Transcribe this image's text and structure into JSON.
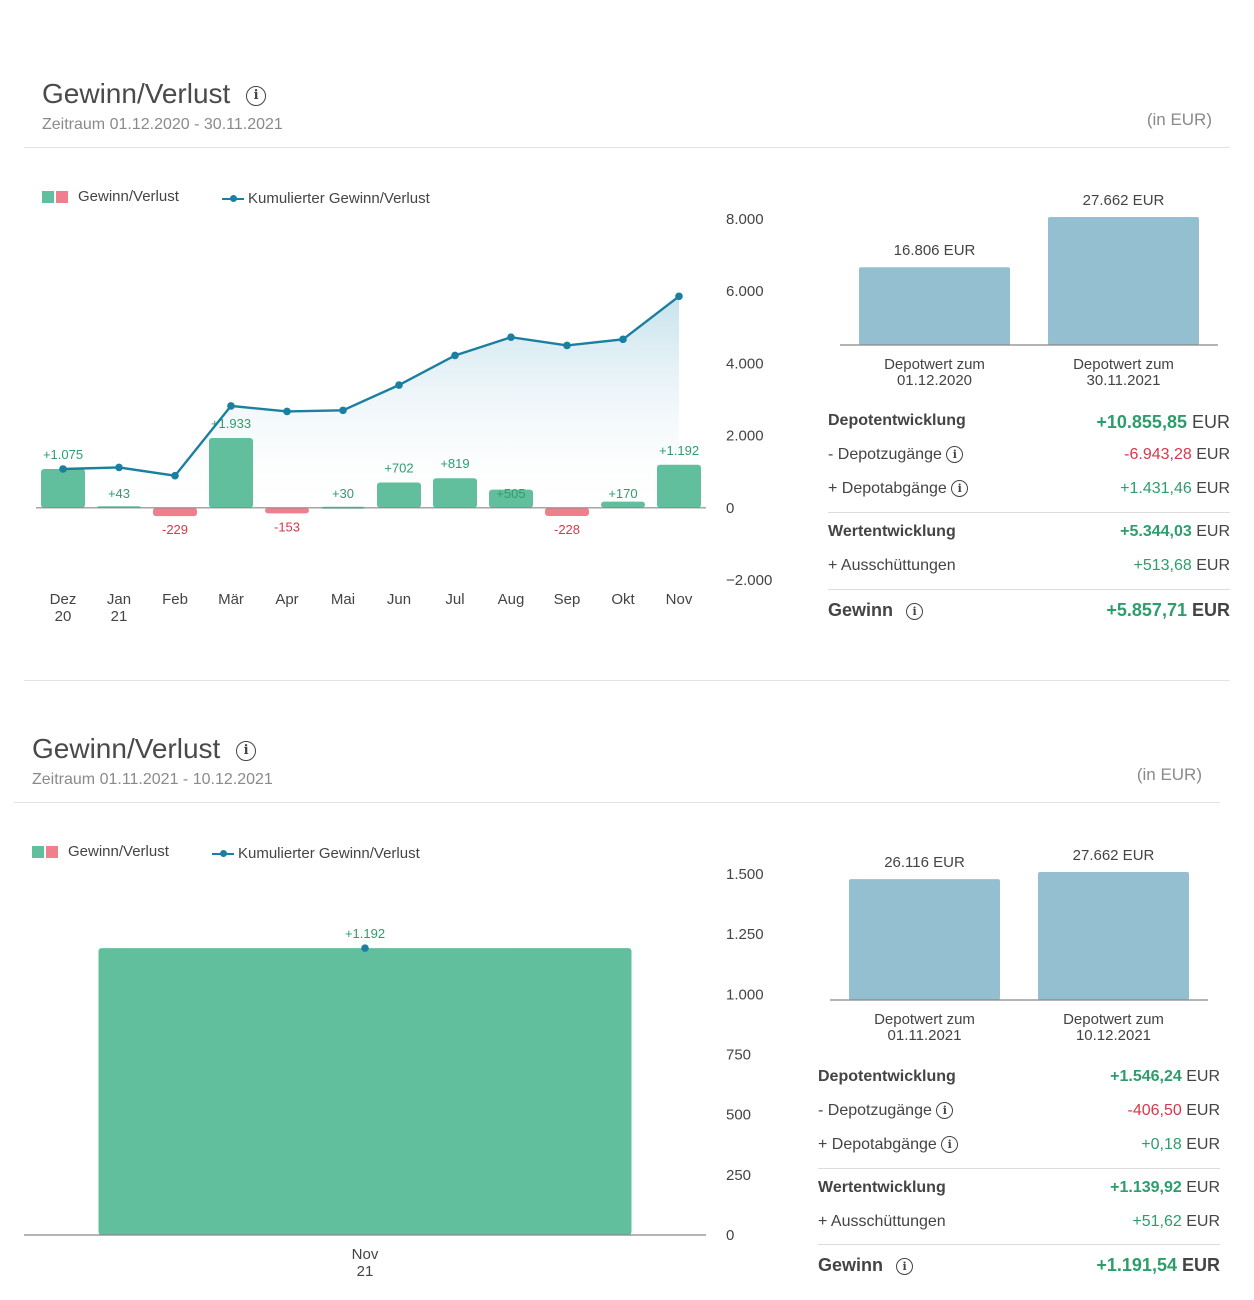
{
  "colors": {
    "positive_bar": "#62bf9d",
    "negative_bar": "#ef7f8c",
    "line": "#1a7fa0",
    "depot_bar": "#94bfd1",
    "positive_text": "#2d9e6b",
    "negative_text": "#d9374b"
  },
  "panel1": {
    "title": "Gewinn/Verlust",
    "period_label": "Zeitraum",
    "period_from": "01.12.2020",
    "period_dash": "-",
    "period_to": "30.11.2021",
    "unit": "(in EUR)",
    "legend_bars": "Gewinn/Verlust",
    "legend_line": "Kumulierter Gewinn/Verlust",
    "summary": {
      "depotentwicklung_label": "Depotentwicklung",
      "depotentwicklung_value": "+10.855,85",
      "currency": "EUR",
      "zugaenge_label": "- Depotzugänge",
      "zugaenge_value": "-6.943,28",
      "abgaenge_label": "+ Depotabgänge",
      "abgaenge_value": "+1.431,46",
      "wertentwicklung_label": "Wertentwicklung",
      "wertentwicklung_value": "+5.344,03",
      "ausschuettungen_label": "+ Ausschüttungen",
      "ausschuettungen_value": "+513,68",
      "gewinn_label": "Gewinn",
      "gewinn_value": "+5.857,71"
    }
  },
  "panel2": {
    "title": "Gewinn/Verlust",
    "period_label": "Zeitraum",
    "period_from": "01.11.2021",
    "period_dash": "-",
    "period_to": "10.12.2021",
    "unit": "(in EUR)",
    "legend_bars": "Gewinn/Verlust",
    "legend_line": "Kumulierter Gewinn/Verlust",
    "summary": {
      "depotentwicklung_label": "Depotentwicklung",
      "depotentwicklung_value": "+1.546,24",
      "currency": "EUR",
      "zugaenge_label": "- Depotzugänge",
      "zugaenge_value": "-406,50",
      "abgaenge_label": "+ Depotabgänge",
      "abgaenge_value": "+0,18",
      "wertentwicklung_label": "Wertentwicklung",
      "wertentwicklung_value": "+1.139,92",
      "ausschuettungen_label": "+ Ausschüttungen",
      "ausschuettungen_value": "+51,62",
      "gewinn_label": "Gewinn",
      "gewinn_value": "+1.191,54"
    }
  },
  "chart_data": [
    {
      "type": "bar",
      "id": "pl1",
      "categories": [
        "Dez 20",
        "Jan 21",
        "Feb",
        "Mär",
        "Apr",
        "Mai",
        "Jun",
        "Jul",
        "Aug",
        "Sep",
        "Okt",
        "Nov"
      ],
      "category_lines": [
        [
          "Dez",
          "20"
        ],
        [
          "Jan",
          "21"
        ],
        [
          "Feb"
        ],
        [
          "Mär"
        ],
        [
          "Apr"
        ],
        [
          "Mai"
        ],
        [
          "Jun"
        ],
        [
          "Jul"
        ],
        [
          "Aug"
        ],
        [
          "Sep"
        ],
        [
          "Okt"
        ],
        [
          "Nov"
        ]
      ],
      "series": [
        {
          "name": "Gewinn/Verlust",
          "values": [
            1075,
            43,
            -229,
            1933,
            -153,
            30,
            702,
            819,
            505,
            -228,
            170,
            1192
          ],
          "labels": [
            "+1.075",
            "+43",
            "-229",
            "+1.933",
            "-153",
            "+30",
            "+702",
            "+819",
            "+505",
            "-228",
            "+170",
            "+1.192"
          ]
        },
        {
          "name": "Kumulierter Gewinn/Verlust",
          "type": "line",
          "values": [
            1075,
            1118,
            889,
            2822,
            2669,
            2699,
            3401,
            4220,
            4725,
            4497,
            4667,
            5859
          ]
        }
      ],
      "yticks": [
        -2000,
        0,
        2000,
        4000,
        6000,
        8000
      ],
      "ytick_labels": [
        "−2.000",
        "0",
        "2.000",
        "4.000",
        "6.000",
        "8.000"
      ],
      "ylim": [
        -2000,
        8000
      ]
    },
    {
      "type": "bar",
      "id": "dep1",
      "categories": [
        "Depotwert zum 01.12.2020",
        "Depotwert zum 30.11.2021"
      ],
      "category_lines": [
        [
          "Depotwert zum",
          "01.12.2020"
        ],
        [
          "Depotwert zum",
          "30.11.2021"
        ]
      ],
      "values": [
        16806,
        27662
      ],
      "labels": [
        "16.806 EUR",
        "27.662 EUR"
      ],
      "ylim": [
        0,
        27662
      ]
    },
    {
      "type": "bar",
      "id": "pl2",
      "categories": [
        "Nov 21"
      ],
      "category_lines": [
        [
          "Nov",
          "21"
        ]
      ],
      "series": [
        {
          "name": "Gewinn/Verlust",
          "values": [
            1192
          ],
          "labels": [
            "+1.192"
          ]
        },
        {
          "name": "Kumulierter Gewinn/Verlust",
          "type": "line",
          "values": [
            1192
          ]
        }
      ],
      "yticks": [
        0,
        250,
        500,
        750,
        1000,
        1250,
        1500
      ],
      "ytick_labels": [
        "0",
        "250",
        "500",
        "750",
        "1.000",
        "1.250",
        "1.500"
      ],
      "ylim": [
        0,
        1500
      ]
    },
    {
      "type": "bar",
      "id": "dep2",
      "categories": [
        "Depotwert zum 01.11.2021",
        "Depotwert zum 10.12.2021"
      ],
      "category_lines": [
        [
          "Depotwert zum",
          "01.11.2021"
        ],
        [
          "Depotwert zum",
          "10.12.2021"
        ]
      ],
      "values": [
        26116,
        27662
      ],
      "labels": [
        "26.116 EUR",
        "27.662 EUR"
      ],
      "ylim": [
        0,
        27662
      ]
    }
  ]
}
